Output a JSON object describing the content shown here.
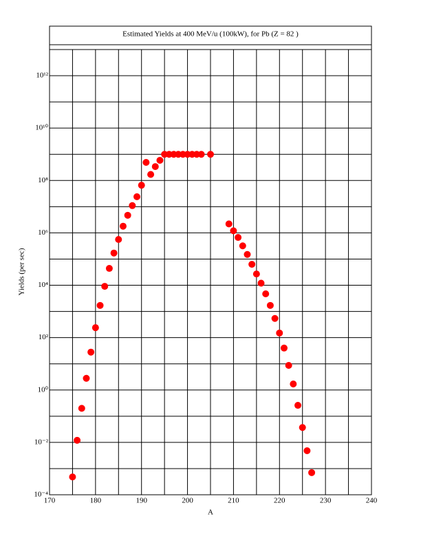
{
  "chart_data": {
    "type": "scatter",
    "title": "Estimated Yields at 400 MeV/u (100kW), for Pb (Z = 82 )",
    "x_label": "A",
    "y_label": "Yields (per sec)",
    "xlim": [
      170,
      240
    ],
    "xticks": [
      170,
      180,
      190,
      200,
      210,
      220,
      230,
      240
    ],
    "x_minor_grid": [
      175,
      185,
      195,
      205,
      215,
      225,
      235
    ],
    "ylim": [
      0.0001,
      10000000000000.0
    ],
    "y_log": true,
    "yticks": [
      {
        "value": 0.0001,
        "label": "10⁻⁴"
      },
      {
        "value": 0.01,
        "label": "10⁻²"
      },
      {
        "value": 1,
        "label": "10⁰"
      },
      {
        "value": 100,
        "label": "10²"
      },
      {
        "value": 10000,
        "label": "10⁴"
      },
      {
        "value": 1000000,
        "label": "10⁶"
      },
      {
        "value": 100000000,
        "label": "10⁸"
      },
      {
        "value": 10000000000,
        "label": "10¹⁰"
      },
      {
        "value": 1000000000000,
        "label": "10¹²"
      }
    ],
    "y_minor_grid": [
      0.001,
      0.1,
      10,
      1000,
      100000,
      10000000,
      1000000000,
      100000000000
    ],
    "grid": true,
    "color": "#ff0000",
    "x": [
      175,
      176,
      177,
      178,
      179,
      180,
      181,
      182,
      183,
      184,
      185,
      186,
      187,
      188,
      189,
      190,
      191,
      192,
      193,
      194,
      195,
      196,
      197,
      198,
      199,
      200,
      201,
      202,
      203,
      205,
      209,
      210,
      211,
      212,
      213,
      214,
      215,
      216,
      217,
      218,
      219,
      220,
      221,
      222,
      223,
      224,
      225,
      226,
      227
    ],
    "values": [
      0.00048,
      0.012,
      0.2,
      2.8,
      28,
      240,
      1700,
      9100,
      44000,
      170000,
      560000,
      1800000,
      4700000,
      11000000,
      24000000,
      66000000,
      490000000,
      170000000,
      340000000,
      590000000,
      1000000000,
      1000000000,
      1000000000,
      1000000000,
      1000000000,
      1000000000,
      1000000000,
      1000000000,
      1000000000,
      1000000000,
      2200000,
      1200000,
      670000,
      320000,
      150000,
      63000,
      27000,
      12000,
      4700,
      1700,
      540,
      150,
      40,
      8.7,
      1.7,
      0.26,
      0.037,
      0.0048,
      0.0007
    ]
  }
}
